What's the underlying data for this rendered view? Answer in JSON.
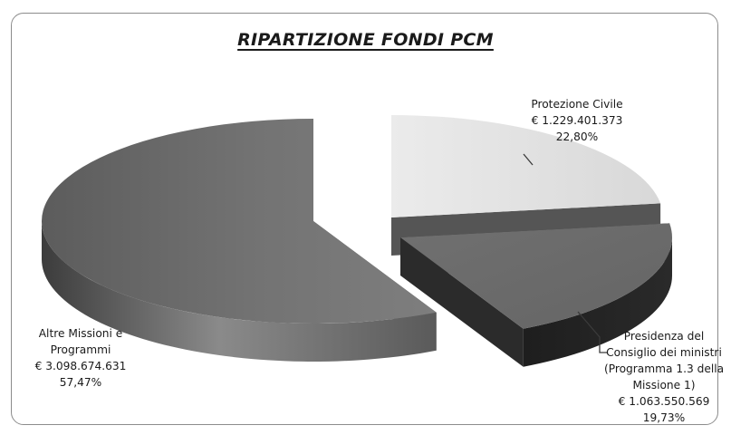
{
  "chart_data": {
    "type": "pie",
    "title": "RIPARTIZIONE FONDI PCM",
    "slices": [
      {
        "label": [
          "Protezione Civile"
        ],
        "amount": "€ 1.229.401.373",
        "percent": "22,80%",
        "value": 22.8,
        "color": "#e2e2e2"
      },
      {
        "label": [
          "Presidenza del",
          "Consiglio dei ministri",
          "(Programma 1.3 della",
          "Missione 1)"
        ],
        "amount": "€ 1.063.550.569",
        "percent": "19,73%",
        "value": 19.73,
        "color": "#6c6c6c"
      },
      {
        "label": [
          "Altre Missioni e",
          "Programmi"
        ],
        "amount": "€ 3.098.674.631",
        "percent": "57,47%",
        "value": 57.47,
        "color": "#6e6e6e"
      }
    ]
  }
}
